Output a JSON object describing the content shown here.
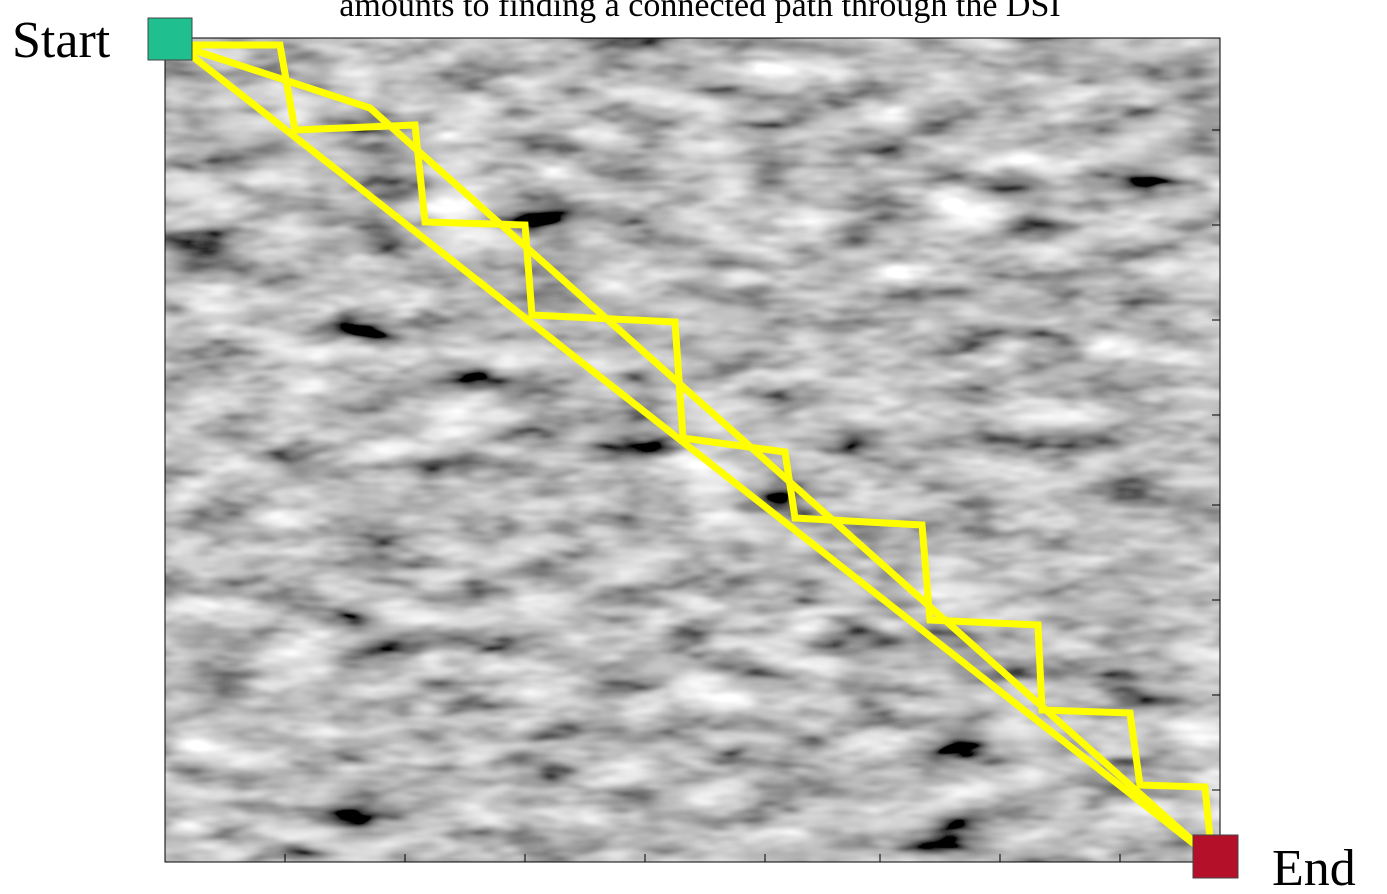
{
  "title": "amounts to finding a connected path through the DSI",
  "start_label": "Start",
  "end_label": "End"
}
